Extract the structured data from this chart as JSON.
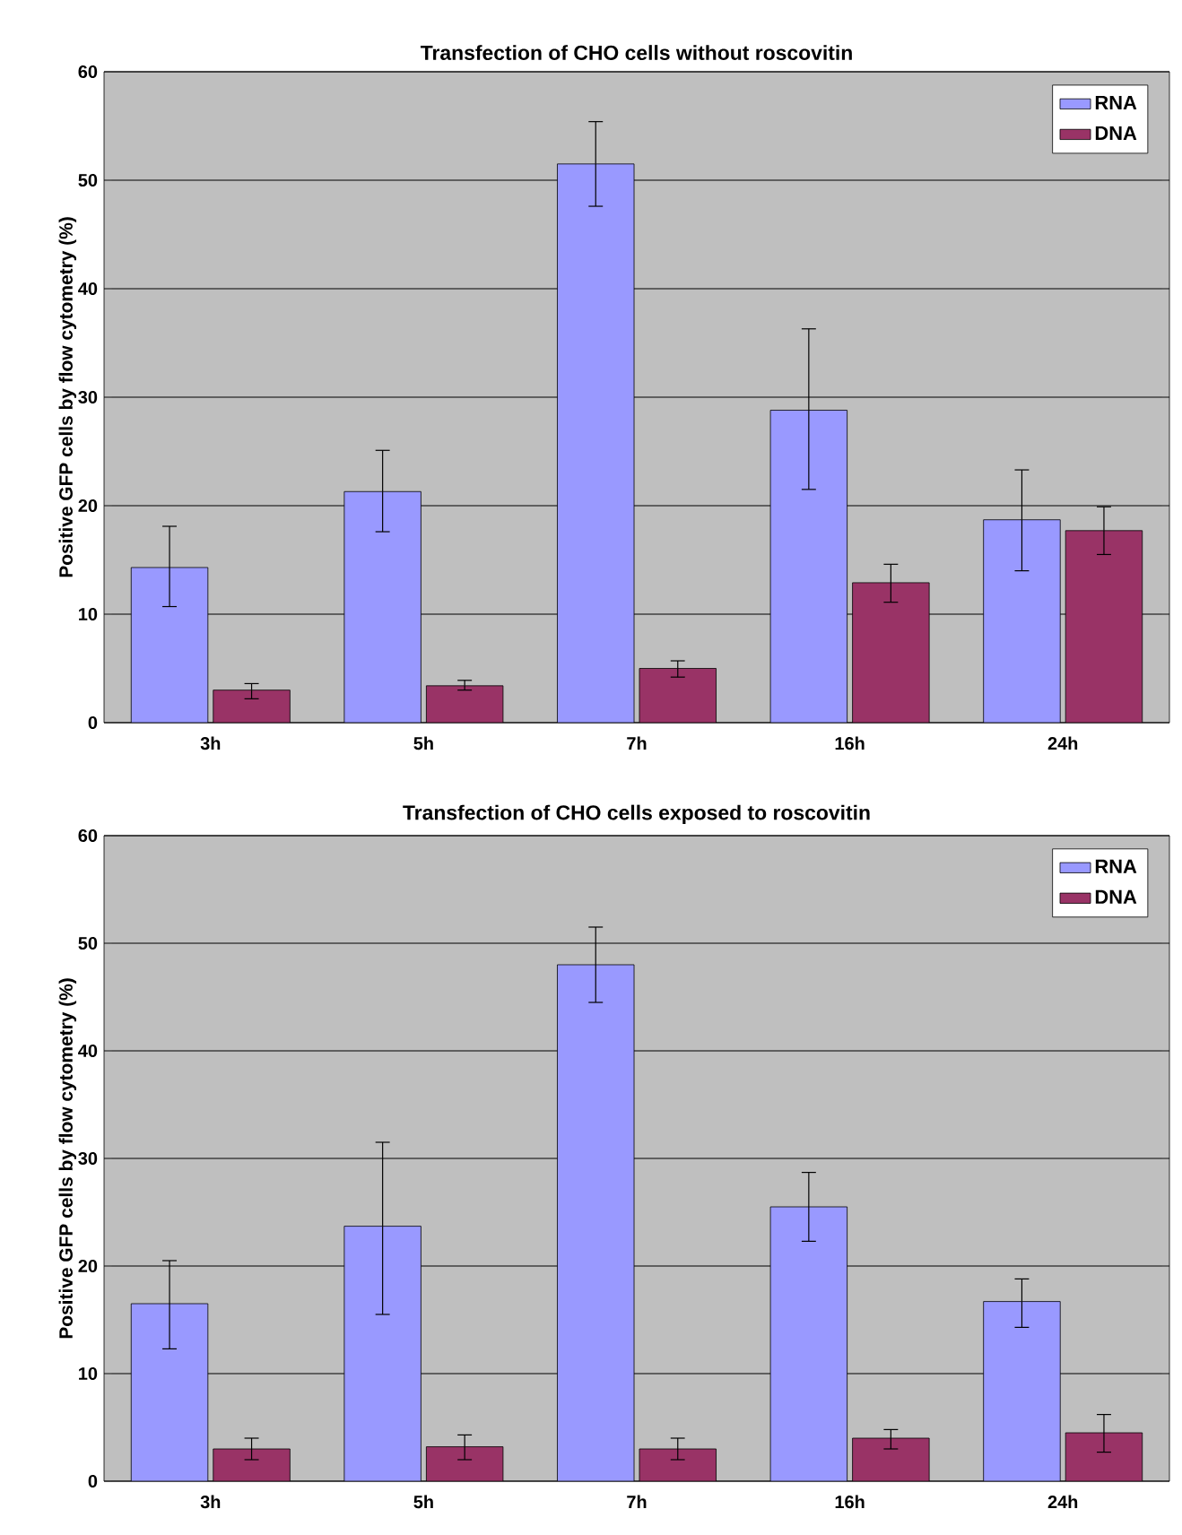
{
  "chart_data": [
    {
      "type": "bar",
      "title": "Transfection of CHO cells without roscovitin",
      "ylabel": "Positive GFP cells by flow cytometry (%)",
      "categories": [
        "3h",
        "5h",
        "7h",
        "16h",
        "24h"
      ],
      "series": [
        {
          "name": "RNA",
          "color": "#9999ff",
          "values": [
            14.3,
            21.3,
            51.5,
            28.8,
            18.7
          ],
          "errors": [
            [
              10.7,
              18.1
            ],
            [
              17.6,
              25.1
            ],
            [
              47.6,
              55.4
            ],
            [
              21.5,
              36.3
            ],
            [
              14.0,
              23.3
            ]
          ]
        },
        {
          "name": "DNA",
          "color": "#993366",
          "values": [
            3.0,
            3.4,
            5.0,
            12.9,
            17.7
          ],
          "errors": [
            [
              2.2,
              3.6
            ],
            [
              3.0,
              3.9
            ],
            [
              4.2,
              5.7
            ],
            [
              11.1,
              14.6
            ],
            [
              15.5,
              19.9
            ]
          ]
        }
      ],
      "ylim": [
        0,
        60
      ],
      "yticks": [
        0,
        10,
        20,
        30,
        40,
        50,
        60
      ],
      "grid": "y",
      "legend": "top right"
    },
    {
      "type": "bar",
      "title": "Transfection of CHO cells exposed to roscovitin",
      "ylabel": "Positive GFP cells by flow cytometry (%)",
      "categories": [
        "3h",
        "5h",
        "7h",
        "16h",
        "24h"
      ],
      "series": [
        {
          "name": "RNA",
          "color": "#9999ff",
          "values": [
            16.5,
            23.7,
            48.0,
            25.5,
            16.7
          ],
          "errors": [
            [
              12.3,
              20.5
            ],
            [
              15.5,
              31.5
            ],
            [
              44.5,
              51.5
            ],
            [
              22.3,
              28.7
            ],
            [
              14.3,
              18.8
            ]
          ]
        },
        {
          "name": "DNA",
          "color": "#993366",
          "values": [
            3.0,
            3.2,
            3.0,
            4.0,
            4.5
          ],
          "errors": [
            [
              2.0,
              4.0
            ],
            [
              2.0,
              4.3
            ],
            [
              2.0,
              4.0
            ],
            [
              3.0,
              4.8
            ],
            [
              2.7,
              6.2
            ]
          ]
        }
      ],
      "ylim": [
        0,
        60
      ],
      "yticks": [
        0,
        10,
        20,
        30,
        40,
        50,
        60
      ],
      "grid": "y",
      "legend": "top right"
    }
  ]
}
